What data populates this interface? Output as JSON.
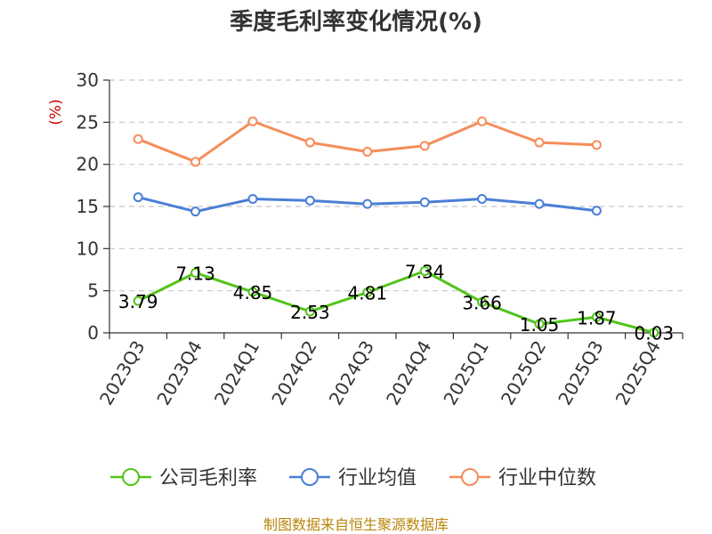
{
  "chart_data": {
    "type": "line",
    "title": "季度毛利率变化情况(%)",
    "ylabel": "(%)",
    "xlabel": "",
    "categories": [
      "2023Q3",
      "2023Q4",
      "2024Q1",
      "2024Q2",
      "2024Q3",
      "2024Q4",
      "2025Q1",
      "2025Q2",
      "2025Q3",
      "2025Q4"
    ],
    "ylim": [
      0,
      30
    ],
    "yticks": [
      0,
      5,
      10,
      15,
      20,
      25,
      30
    ],
    "grid": true,
    "legend_position": "bottom",
    "series": [
      {
        "name": "公司毛利率",
        "color": "#52c41a",
        "values": [
          3.79,
          7.13,
          4.85,
          2.53,
          4.81,
          7.34,
          3.66,
          1.05,
          1.87,
          0.03
        ],
        "labels": [
          "3.79",
          "7.13",
          "4.85",
          "2.53",
          "4.81",
          "7.34",
          "3.66",
          "1.05",
          "1.87",
          "0.03"
        ]
      },
      {
        "name": "行业均值",
        "color": "#4a7fd6",
        "values": [
          16.1,
          14.4,
          15.9,
          15.7,
          15.3,
          15.5,
          15.9,
          15.3,
          14.5,
          null
        ]
      },
      {
        "name": "行业中位数",
        "color": "#f58d5a",
        "values": [
          23.0,
          20.3,
          25.1,
          22.6,
          21.5,
          22.2,
          25.1,
          22.6,
          22.3,
          null
        ]
      }
    ],
    "source": "制图数据来自恒生聚源数据库"
  }
}
